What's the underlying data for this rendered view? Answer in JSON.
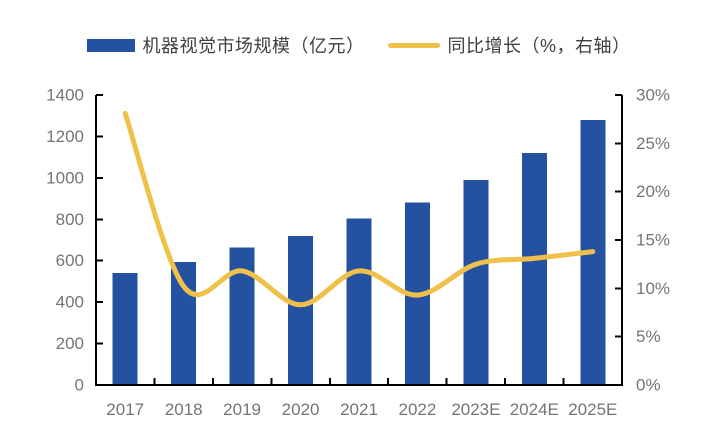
{
  "chart_data": {
    "type": "bar+line",
    "title": "",
    "categories": [
      "2017",
      "2018",
      "2019",
      "2020",
      "2021",
      "2022",
      "2023E",
      "2024E",
      "2025E"
    ],
    "series": [
      {
        "name": "机器视觉市场规模（亿元）",
        "type": "bar",
        "axis": "left",
        "color": "#2452A1",
        "values": [
          540,
          595,
          665,
          720,
          805,
          880,
          990,
          1120,
          1280
        ]
      },
      {
        "name": "同比增长（%，右轴）",
        "type": "line",
        "axis": "right",
        "color": "#EFC14B",
        "values": [
          28.1,
          10.2,
          11.8,
          8.3,
          11.8,
          9.3,
          12.5,
          13.1,
          13.8
        ]
      }
    ],
    "left_axis": {
      "min": 0,
      "max": 1400,
      "step": 200,
      "tick_labels": [
        "1400",
        "1200",
        "1000",
        "800",
        "600",
        "400",
        "200",
        "0"
      ]
    },
    "right_axis": {
      "min": 0,
      "max": 30,
      "step": 5,
      "unit": "%",
      "tick_labels": [
        "30%",
        "25%",
        "20%",
        "15%",
        "10%",
        "5%",
        "0%"
      ]
    },
    "grid": false,
    "legend_position": "top",
    "axis_label_color": "#757575",
    "axis_line_color": "#000000"
  }
}
